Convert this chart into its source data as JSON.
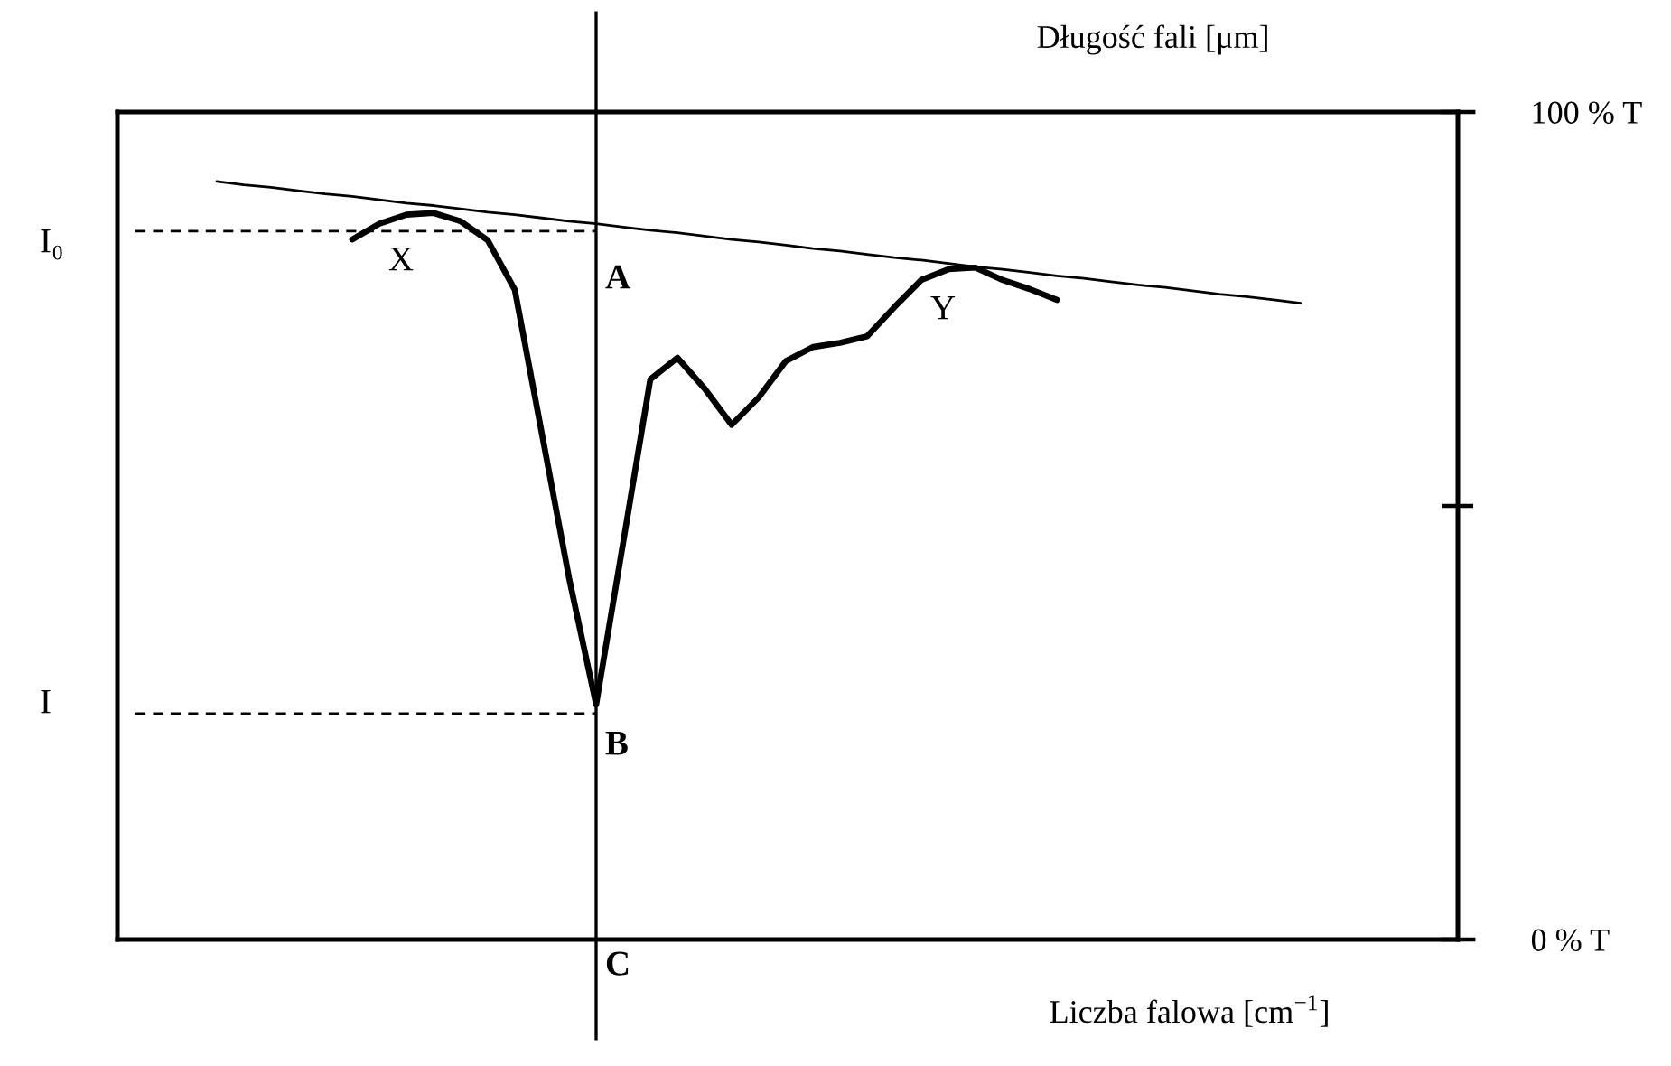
{
  "chart_data": {
    "type": "line",
    "x2label": "Długość fali [μm]",
    "xlabel": "Liczba falowa [cm$^{−1}$]",
    "categories": [
      null,
      null,
      null,
      null,
      null,
      null,
      null,
      null,
      null,
      null,
      null,
      null,
      null,
      null,
      null,
      null,
      null,
      null,
      null,
      null,
      null,
      null,
      null,
      null,
      null,
      null,
      null,
      null,
      null,
      null,
      null,
      null,
      null,
      null,
      null,
      null,
      null,
      null,
      null,
      null,
      null,
      null,
      null,
      null,
      null,
      null,
      null,
      null,
      null
    ],
    "ylim": [
      0,
      100
    ],
    "yticks": [
      {
        "value": 0,
        "label": "0 % T"
      },
      {
        "value": 100,
        "label": "100 % T"
      }
    ],
    "tick_labels": "y",
    "series": [
      {
        "color": "#000000",
        "line_style": "solid",
        "values": [
          null,
          null,
          null,
          null,
          null,
          null,
          null,
          null,
          84.6,
          86.5,
          87.6,
          87.8,
          86.8,
          84.5,
          78.5,
          61.1,
          43.7,
          28.4,
          48.0,
          67.7,
          70.3,
          66.6,
          62.2,
          65.5,
          69.9,
          71.6,
          72.1,
          72.9,
          76.4,
          79.7,
          81.0,
          81.2,
          79.7,
          78.6,
          77.3,
          null,
          null,
          null,
          null,
          null,
          null,
          null,
          null,
          null,
          null,
          null,
          null,
          null,
          null
        ]
      },
      {
        "color": "#000000",
        "line_style": "solid",
        "values": [
          null,
          null,
          null,
          91.6,
          91.2,
          90.9,
          90.5,
          90.1,
          89.8,
          89.4,
          89.0,
          88.7,
          88.3,
          87.9,
          87.6,
          87.2,
          86.8,
          86.5,
          86.1,
          85.7,
          85.4,
          85.0,
          84.6,
          84.3,
          83.9,
          83.5,
          83.2,
          82.8,
          82.4,
          82.1,
          81.7,
          81.3,
          81.0,
          80.6,
          80.2,
          79.9,
          79.5,
          79.1,
          78.8,
          78.4,
          78.0,
          77.7,
          77.3,
          76.9,
          null,
          null,
          null,
          null,
          null
        ]
      },
      {
        "color": "#000000",
        "line_style": "dashed",
        "values": [
          85.6,
          85.6,
          85.6,
          85.6,
          85.6,
          85.6,
          85.6,
          85.6,
          85.6,
          85.6,
          85.6,
          85.6,
          85.6,
          85.6,
          85.6,
          85.6,
          85.6,
          85.6,
          null,
          null,
          null,
          null,
          null,
          null,
          null,
          null,
          null,
          null,
          null,
          null,
          null,
          null,
          null,
          null,
          null,
          null,
          null,
          null,
          null,
          null,
          null,
          null,
          null,
          null,
          null,
          null,
          null,
          null,
          null
        ]
      },
      {
        "color": "#000000",
        "line_style": "dashed",
        "values": [
          27.3,
          27.3,
          27.3,
          27.3,
          27.3,
          27.3,
          27.3,
          27.3,
          27.3,
          27.3,
          27.3,
          27.3,
          27.3,
          27.3,
          27.3,
          27.3,
          27.3,
          27.3,
          null,
          null,
          null,
          null,
          null,
          null,
          null,
          null,
          null,
          null,
          null,
          null,
          null,
          null,
          null,
          null,
          null,
          null,
          null,
          null,
          null,
          null,
          null,
          null,
          null,
          null,
          null,
          null,
          null,
          null,
          null
        ]
      }
    ],
    "annotations": [
      "X",
      "Y",
      "A",
      "B",
      "C",
      "I₀",
      "I"
    ]
  }
}
